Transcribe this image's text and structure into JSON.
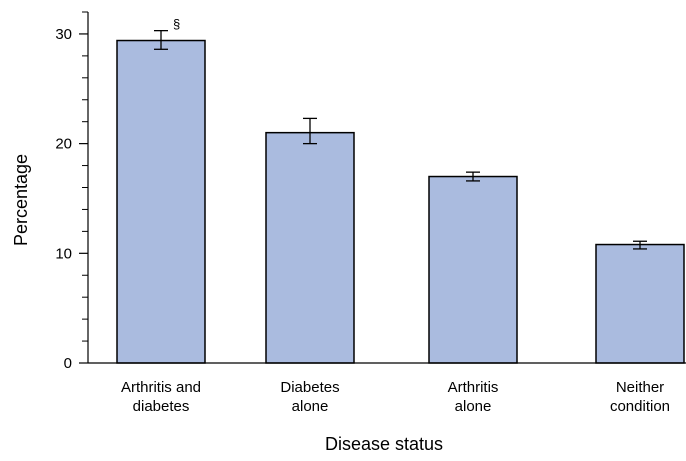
{
  "chart_data": {
    "type": "bar",
    "categories": [
      [
        "Arthritis and",
        "diabetes"
      ],
      [
        "Diabetes",
        "alone"
      ],
      [
        "Arthritis",
        "alone"
      ],
      [
        "Neither",
        "condition"
      ]
    ],
    "values": [
      29.4,
      21.0,
      17.0,
      10.8
    ],
    "error_bars": [
      {
        "low": 28.6,
        "high": 30.3
      },
      {
        "low": 20.0,
        "high": 22.3
      },
      {
        "low": 16.6,
        "high": 17.4
      },
      {
        "low": 10.4,
        "high": 11.1
      }
    ],
    "annotations": [
      {
        "category_index": 0,
        "text": "§"
      }
    ],
    "xlabel": "Disease status",
    "ylabel": "Percentage",
    "ylim": [
      0,
      32
    ],
    "yticks": [
      0,
      10,
      20,
      30
    ],
    "yminor_step": 2,
    "grid": false,
    "bar_color": "#aabbdf",
    "bar_edge_color": "#000000"
  }
}
